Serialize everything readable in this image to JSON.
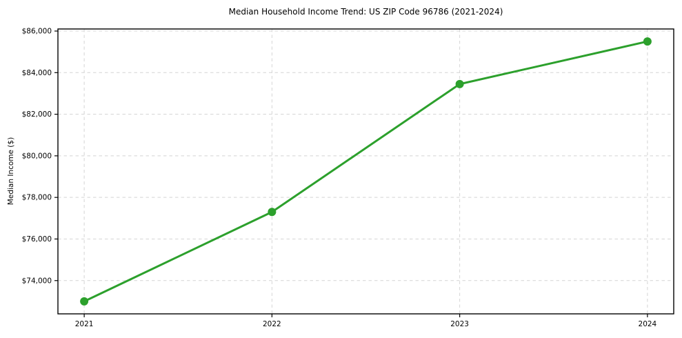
{
  "chart_data": {
    "type": "line",
    "title": "Median Household Income Trend: US ZIP Code 96786 (2021-2024)",
    "ylabel": "Median Income ($)",
    "xlabel": "",
    "x": [
      2021,
      2022,
      2023,
      2024
    ],
    "series": [
      {
        "name": "Median Household Income",
        "values": [
          73000,
          77300,
          83450,
          85500
        ]
      }
    ],
    "x_tick_labels": [
      "2021",
      "2022",
      "2023",
      "2024"
    ],
    "y_tick_values": [
      74000,
      76000,
      78000,
      80000,
      82000,
      84000,
      86000
    ],
    "y_tick_labels": [
      "$74,000",
      "$76,000",
      "$78,000",
      "$80,000",
      "$82,000",
      "$84,000",
      "$86,000"
    ],
    "xlim": [
      2020.86,
      2024.14
    ],
    "ylim": [
      72400,
      86100
    ],
    "grid": "both-dashed",
    "legend": "none",
    "line_color": "#2ca02c",
    "marker": "circle",
    "grid_color": "#d4d4d4",
    "axis_color": "#000000",
    "background_color": "#ffffff"
  }
}
